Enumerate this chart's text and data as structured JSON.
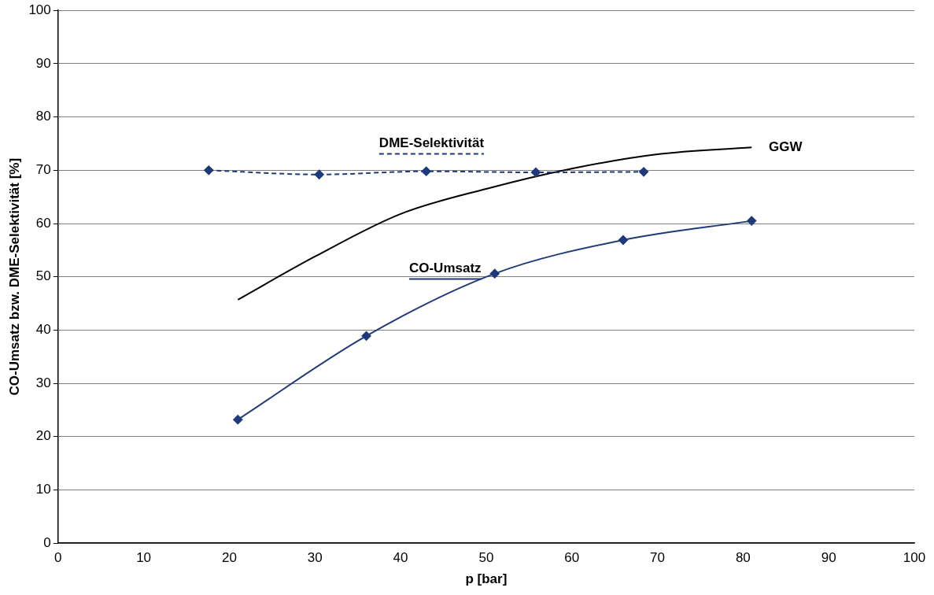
{
  "chart_data": {
    "type": "line",
    "xlabel": "p [bar]",
    "ylabel": "CO-Umsatz bzw. DME-Selektivität [%]",
    "xlim": [
      0,
      100
    ],
    "xticks": [
      0,
      10,
      20,
      30,
      40,
      50,
      60,
      70,
      80,
      90,
      100
    ],
    "ylim": [
      0,
      100
    ],
    "yticks": [
      0,
      10,
      20,
      30,
      40,
      50,
      60,
      70,
      80,
      90,
      100
    ],
    "grid": "y",
    "legend": false,
    "series": [
      {
        "name": "DME-Selektivität",
        "color": "#1f3a7a",
        "x": [
          17.6,
          30.5,
          43.0,
          55.8,
          68.4
        ],
        "values": [
          70,
          69.2,
          69.8,
          69.6,
          69.7
        ],
        "marker": "diamond",
        "line_style": "dashed"
      },
      {
        "name": "CO-Umsatz",
        "color": "#1f3a7a",
        "x": [
          21,
          36,
          51,
          66,
          81
        ],
        "values": [
          23.2,
          38.9,
          50.6,
          56.9,
          60.5
        ],
        "marker": "diamond",
        "line_style": "solid"
      },
      {
        "name": "GGW",
        "color": "#000000",
        "x": [
          21,
          30,
          40,
          50,
          60,
          70,
          81
        ],
        "values": [
          45.7,
          53.8,
          61.8,
          66.5,
          70.3,
          73,
          74.3
        ],
        "marker": "none",
        "line_style": "solid"
      }
    ]
  }
}
